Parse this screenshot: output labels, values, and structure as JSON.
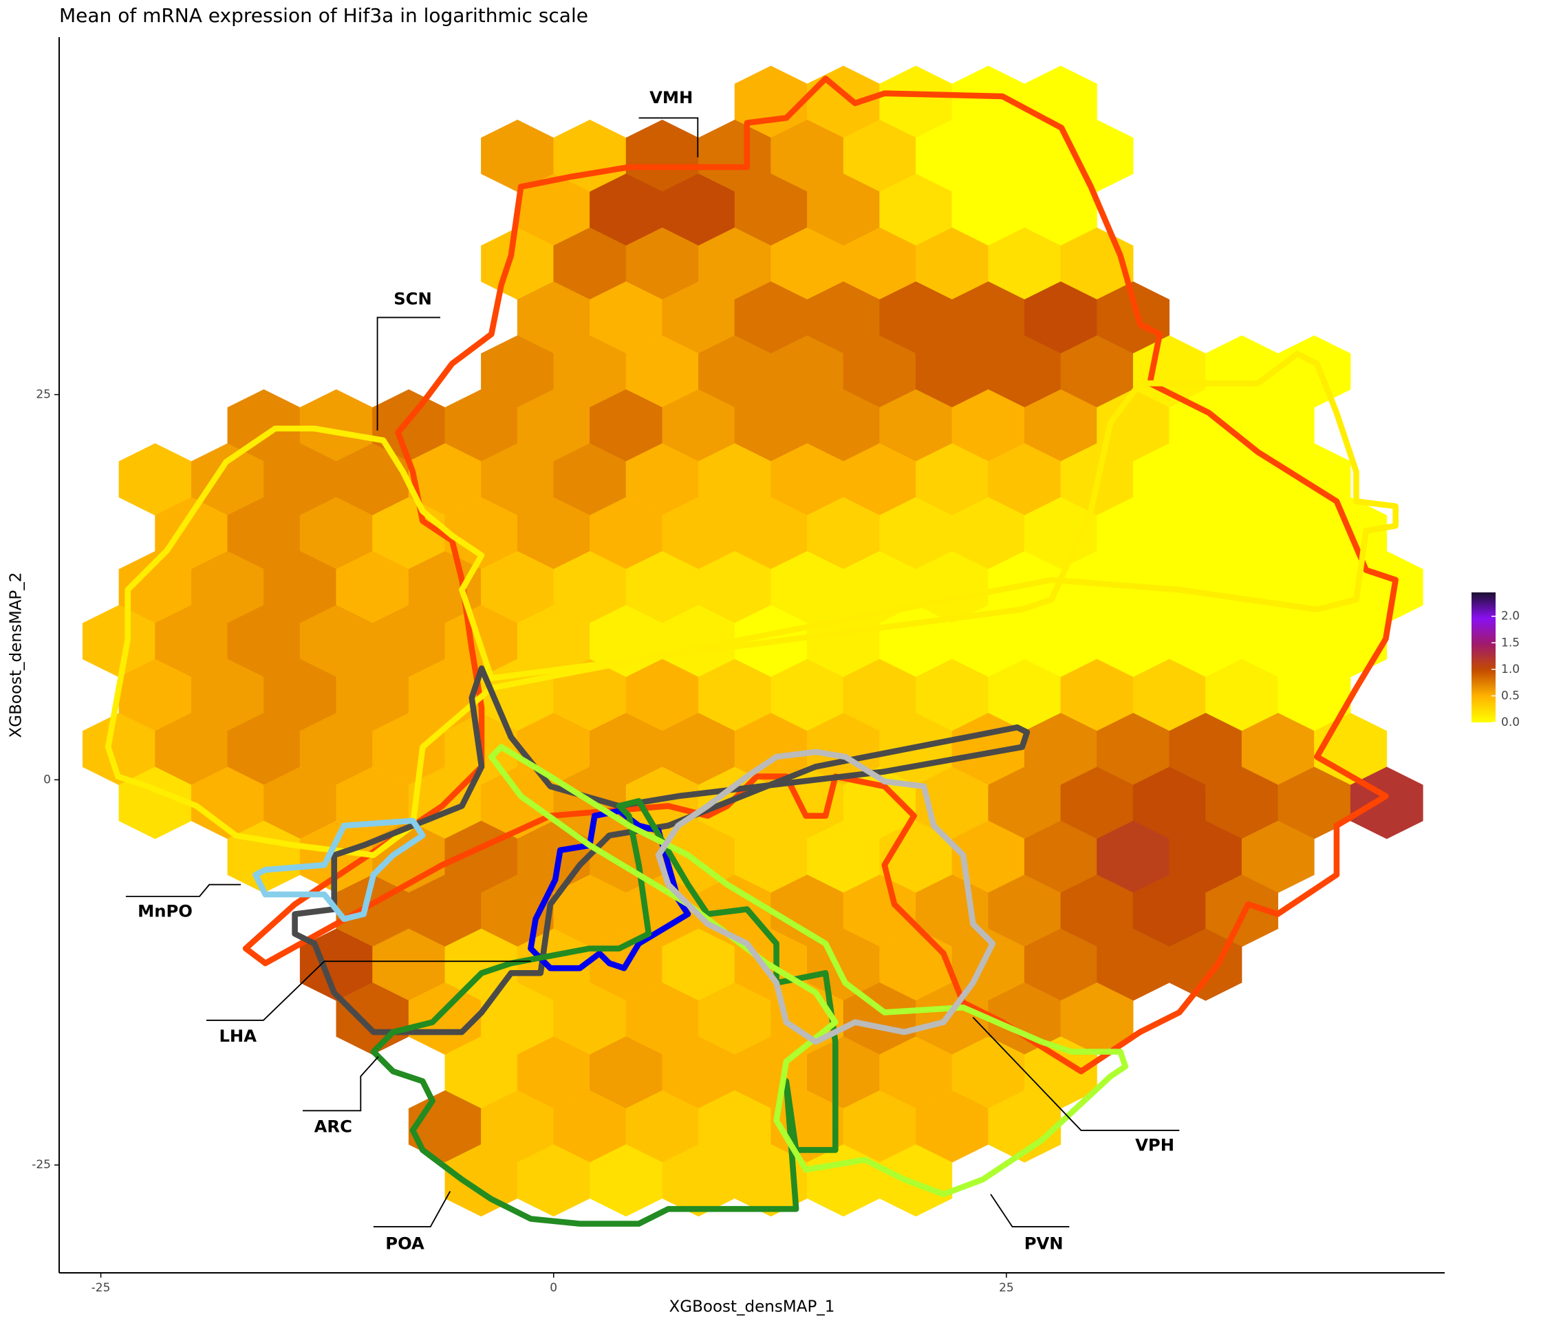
{
  "chart_data": {
    "type": "hexbin",
    "title": "Mean of mRNA expression of Hif3a in logarithmic scale",
    "x_label": "XGBoost_densMAP_1",
    "y_label": "XGBoost_densMAP_2",
    "xlim": [
      -27.3,
      49.2
    ],
    "ylim": [
      -32,
      48.2
    ],
    "xticks": [
      -25,
      0,
      25
    ],
    "yticks": [
      -25,
      0,
      25
    ],
    "colorbar": {
      "lim": [
        0,
        2.45
      ],
      "colors": [
        "#ffff00",
        "#ffb400",
        "#c44d00",
        "#a01a6a",
        "#8a10f0",
        "#1c1030"
      ],
      "ticks": [
        {
          "value": 0,
          "label": "0.0"
        },
        {
          "value": 0.5,
          "label": "0.5"
        },
        {
          "value": 1,
          "label": "1.0"
        },
        {
          "value": 1.5,
          "label": "1.5"
        },
        {
          "value": 2,
          "label": "2.0"
        }
      ]
    },
    "annotations": [
      "VMH",
      "SCN",
      "MnPO",
      "LHA",
      "ARC",
      "POA",
      "PVN",
      "VPH"
    ],
    "rows": [
      {
        "y": 44,
        "x": [
          12,
          16,
          20,
          24,
          28
        ],
        "values": [
          0.5,
          0.4,
          0.1,
          0,
          0
        ]
      },
      {
        "y": 40.5,
        "x": [
          -2,
          2,
          6,
          10,
          14,
          18,
          22,
          26,
          30
        ],
        "values": [
          0.6,
          0.4,
          0.9,
          0.8,
          0.6,
          0.3,
          0,
          0,
          0
        ]
      },
      {
        "y": 37,
        "x": [
          0,
          4,
          8,
          12,
          16,
          20,
          24,
          28
        ],
        "values": [
          0.5,
          1,
          1,
          0.8,
          0.6,
          0.2,
          0,
          0
        ]
      },
      {
        "y": 33.5,
        "x": [
          -2,
          2,
          6,
          10,
          14,
          18,
          22,
          26,
          30
        ],
        "values": [
          0.4,
          0.8,
          0.7,
          0.6,
          0.5,
          0.5,
          0.4,
          0.2,
          0.3
        ]
      },
      {
        "y": 30,
        "x": [
          0,
          4,
          8,
          12,
          16,
          20,
          24,
          28,
          32
        ],
        "values": [
          0.6,
          0.5,
          0.6,
          0.8,
          0.8,
          0.9,
          0.9,
          1,
          0.9
        ]
      },
      {
        "y": 26.5,
        "x": [
          -2,
          2,
          6,
          10,
          14,
          18,
          22,
          26,
          30,
          34,
          38,
          42
        ],
        "values": [
          0.7,
          0.6,
          0.5,
          0.7,
          0.7,
          0.8,
          0.9,
          0.9,
          0.8,
          0.1,
          0,
          0
        ]
      },
      {
        "y": 23,
        "x": [
          -16,
          -12,
          -8,
          -4,
          0,
          4,
          8,
          12,
          16,
          20,
          24,
          28,
          32,
          36,
          40
        ],
        "values": [
          0.7,
          0.6,
          0.8,
          0.7,
          0.6,
          0.8,
          0.6,
          0.7,
          0.7,
          0.6,
          0.5,
          0.6,
          0.2,
          0,
          0
        ]
      },
      {
        "y": 19.5,
        "x": [
          -22,
          -18,
          -14,
          -10,
          -6,
          -2,
          2,
          6,
          10,
          14,
          18,
          22,
          26,
          30,
          34,
          38,
          42
        ],
        "values": [
          0.4,
          0.6,
          0.7,
          0.7,
          0.5,
          0.6,
          0.7,
          0.5,
          0.4,
          0.5,
          0.5,
          0.3,
          0.4,
          0.2,
          0,
          0,
          0
        ]
      },
      {
        "y": 16,
        "x": [
          -20,
          -16,
          -12,
          -8,
          -4,
          0,
          4,
          8,
          12,
          16,
          20,
          24,
          28,
          32,
          36,
          40,
          44
        ],
        "values": [
          0.5,
          0.7,
          0.6,
          0.4,
          0.5,
          0.6,
          0.5,
          0.4,
          0.4,
          0.3,
          0.2,
          0.2,
          0.1,
          0,
          0,
          0,
          0
        ]
      },
      {
        "y": 12.5,
        "x": [
          -22,
          -18,
          -14,
          -10,
          -6,
          -2,
          2,
          6,
          10,
          14,
          18,
          22,
          26,
          30,
          34,
          38,
          42,
          46
        ],
        "values": [
          0.5,
          0.6,
          0.7,
          0.5,
          0.6,
          0.4,
          0.3,
          0.2,
          0.2,
          0.1,
          0.1,
          0.1,
          0,
          0,
          0,
          0,
          0,
          0
        ]
      },
      {
        "y": 9,
        "x": [
          -24,
          -20,
          -16,
          -12,
          -8,
          -4,
          0,
          4,
          8,
          12,
          16,
          20,
          24,
          28,
          32,
          36,
          40,
          44
        ],
        "values": [
          0.4,
          0.6,
          0.7,
          0.6,
          0.6,
          0.5,
          0.3,
          0.1,
          0.1,
          0,
          0.1,
          0,
          0,
          0,
          0,
          0,
          0,
          0
        ]
      },
      {
        "y": 5.5,
        "x": [
          -22,
          -18,
          -14,
          -10,
          -6,
          -2,
          2,
          6,
          10,
          14,
          18,
          22,
          26,
          30,
          34,
          38,
          42
        ],
        "values": [
          0.5,
          0.6,
          0.7,
          0.6,
          0.5,
          0.3,
          0.4,
          0.5,
          0.3,
          0.2,
          0.3,
          0.2,
          0.1,
          0.4,
          0.3,
          0.1,
          0
        ]
      },
      {
        "y": 2,
        "x": [
          -24,
          -20,
          -16,
          -12,
          -8,
          -4,
          0,
          4,
          8,
          12,
          16,
          20,
          24,
          28,
          32,
          36,
          40,
          44
        ],
        "values": [
          0.4,
          0.6,
          0.7,
          0.6,
          0.5,
          0.4,
          0.5,
          0.6,
          0.6,
          0.5,
          0.4,
          0.3,
          0.5,
          0.7,
          0.8,
          0.9,
          0.6,
          0.2
        ]
      },
      {
        "y": -1.5,
        "x": [
          -22,
          -18,
          -14,
          -10,
          -6,
          -2,
          2,
          6,
          10,
          14,
          18,
          22,
          26,
          30,
          34,
          38,
          42,
          46
        ],
        "values": [
          0.2,
          0.5,
          0.6,
          0.5,
          0.4,
          0.5,
          0.6,
          0.4,
          0.3,
          0.3,
          0.2,
          0.4,
          0.7,
          0.9,
          1,
          0.9,
          0.8,
          1.2
        ]
      },
      {
        "y": -5,
        "x": [
          -16,
          -12,
          -8,
          -4,
          0,
          4,
          8,
          12,
          16,
          20,
          24,
          28,
          32,
          36,
          40
        ],
        "values": [
          0.3,
          0.5,
          0.6,
          0.8,
          0.7,
          0.6,
          0.4,
          0.3,
          0.2,
          0.3,
          0.5,
          0.8,
          1.1,
          1,
          0.7
        ]
      },
      {
        "y": -8.5,
        "x": [
          -10,
          -6,
          -2,
          2,
          6,
          10,
          14,
          18,
          22,
          26,
          30,
          34,
          38
        ],
        "values": [
          0.8,
          0.8,
          0.7,
          0.5,
          0.5,
          0.5,
          0.6,
          0.5,
          0.6,
          0.7,
          0.9,
          1,
          0.8
        ]
      },
      {
        "y": -12,
        "x": [
          -12,
          -8,
          -4,
          0,
          4,
          8,
          12,
          16,
          20,
          24,
          28,
          32,
          36
        ],
        "values": [
          1,
          0.6,
          0.3,
          0.4,
          0.5,
          0.3,
          0.5,
          0.6,
          0.5,
          0.6,
          0.8,
          0.9,
          0.9
        ]
      },
      {
        "y": -15.5,
        "x": [
          -10,
          -6,
          -2,
          2,
          6,
          10,
          14,
          18,
          22,
          26,
          30
        ],
        "values": [
          0.9,
          0.5,
          0.3,
          0.4,
          0.5,
          0.4,
          0.5,
          0.7,
          0.6,
          0.7,
          0.6
        ]
      },
      {
        "y": -19,
        "x": [
          -4,
          0,
          4,
          8,
          12,
          16,
          20,
          24,
          28
        ],
        "values": [
          0.3,
          0.5,
          0.6,
          0.5,
          0.5,
          0.6,
          0.5,
          0.4,
          0.3
        ]
      },
      {
        "y": -22.5,
        "x": [
          -6,
          -2,
          2,
          6,
          10,
          14,
          18,
          22,
          26
        ],
        "values": [
          0.8,
          0.4,
          0.5,
          0.4,
          0.3,
          0.5,
          0.4,
          0.5,
          0.3
        ]
      },
      {
        "y": -26,
        "x": [
          -4,
          0,
          4,
          8,
          12,
          16,
          20
        ],
        "values": [
          0.4,
          0.3,
          0.2,
          0.3,
          0.3,
          0.2,
          0.2
        ]
      }
    ]
  }
}
